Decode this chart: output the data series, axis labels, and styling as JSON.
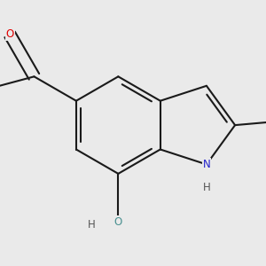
{
  "background_color": "#eaeaea",
  "bond_color": "#1a1a1a",
  "bond_width": 1.5,
  "atom_colors": {
    "O_carbonyl": "#e00000",
    "O_hydroxyl": "#4a9090",
    "N": "#2222cc",
    "H": "#4a9090",
    "H_black": "#555555"
  },
  "font_size": 8.5,
  "figsize": [
    3.0,
    3.0
  ],
  "dpi": 100,
  "scale": 0.42
}
